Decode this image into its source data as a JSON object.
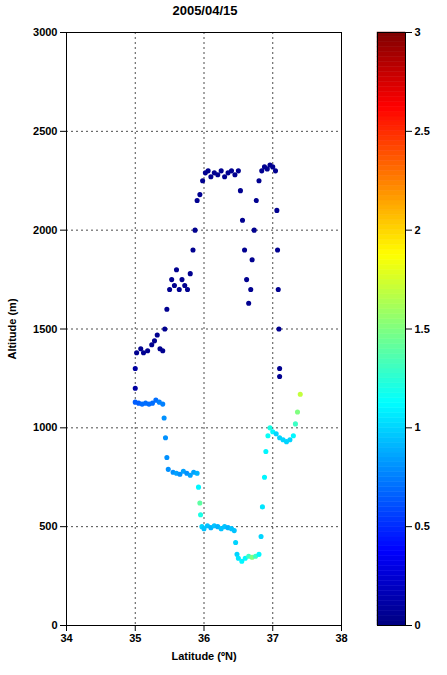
{
  "chart_data": {
    "type": "scatter",
    "title": "2005/04/15",
    "x_label": "Latitude (ºN)",
    "y_label": "Altitude (m)",
    "xlim": [
      34,
      38
    ],
    "xticks": [
      34,
      35,
      36,
      37,
      38
    ],
    "ylim": [
      0,
      3000
    ],
    "yticks": [
      0,
      500,
      1000,
      1500,
      2000,
      2500,
      3000
    ],
    "grid": true,
    "marker": "dot",
    "colorbar_range": [
      0,
      3
    ],
    "colorbar_ticks": [
      0,
      0.5,
      1,
      1.5,
      2,
      2.5,
      3
    ],
    "x": [
      35.0,
      35.05,
      35.1,
      35.15,
      35.2,
      35.25,
      35.3,
      35.35,
      35.4,
      35.42,
      35.44,
      35.46,
      35.48,
      35.55,
      35.6,
      35.65,
      35.7,
      35.75,
      35.8,
      35.85,
      35.9,
      35.92,
      35.94,
      35.95,
      35.97,
      36.0,
      36.05,
      36.1,
      36.15,
      36.2,
      36.25,
      36.3,
      36.35,
      36.4,
      36.44,
      36.46,
      36.48,
      36.5,
      36.55,
      36.6,
      36.65,
      36.7,
      36.75,
      36.8,
      36.83,
      36.85,
      36.88,
      36.9,
      36.93,
      36.96,
      37.0,
      37.05,
      37.1,
      37.15,
      37.2,
      37.25,
      37.3,
      37.33,
      37.36,
      37.4,
      35.0,
      35.0,
      35.02,
      35.08,
      35.12,
      35.18,
      35.24,
      35.28,
      35.32,
      35.36,
      35.4,
      35.43,
      35.46,
      35.5,
      35.53,
      35.57,
      35.6,
      35.64,
      35.68,
      35.72,
      35.76,
      35.8,
      35.84,
      35.87,
      35.9,
      35.94,
      35.98,
      36.02,
      36.06,
      36.1,
      36.15,
      36.2,
      36.25,
      36.3,
      36.35,
      36.4,
      36.45,
      36.5,
      36.53,
      36.56,
      36.59,
      36.62,
      36.65,
      36.68,
      36.7,
      36.73,
      36.76,
      36.8,
      36.84,
      36.88,
      36.92,
      36.96,
      37.0,
      37.04,
      37.06,
      37.07,
      37.08,
      37.09,
      37.1,
      37.1
    ],
    "y": [
      1130,
      1125,
      1120,
      1125,
      1120,
      1125,
      1140,
      1130,
      1120,
      1050,
      950,
      850,
      790,
      775,
      770,
      765,
      780,
      770,
      760,
      775,
      770,
      700,
      620,
      560,
      500,
      490,
      505,
      495,
      505,
      500,
      490,
      500,
      495,
      490,
      480,
      420,
      360,
      340,
      325,
      340,
      350,
      345,
      350,
      360,
      450,
      600,
      750,
      880,
      960,
      1000,
      980,
      970,
      950,
      940,
      930,
      940,
      960,
      1020,
      1080,
      1170,
      1200,
      1300,
      1380,
      1400,
      1380,
      1390,
      1420,
      1440,
      1470,
      1400,
      1390,
      1500,
      1600,
      1700,
      1750,
      1720,
      1800,
      1700,
      1750,
      1720,
      1700,
      1780,
      1900,
      2000,
      2150,
      2180,
      2250,
      2290,
      2300,
      2270,
      2290,
      2280,
      2300,
      2270,
      2290,
      2300,
      2280,
      2300,
      2200,
      2050,
      1900,
      1750,
      1630,
      1700,
      1850,
      2000,
      2150,
      2250,
      2300,
      2320,
      2310,
      2330,
      2320,
      2300,
      2100,
      1900,
      1700,
      1500,
      1300,
      1260
    ],
    "color_values": [
      0.65,
      0.65,
      0.7,
      0.7,
      0.7,
      0.7,
      0.7,
      0.75,
      0.75,
      0.8,
      0.8,
      0.8,
      0.8,
      0.8,
      0.85,
      0.8,
      0.85,
      0.8,
      0.85,
      0.85,
      0.9,
      1.1,
      1.4,
      1.2,
      1.0,
      0.95,
      0.95,
      0.9,
      0.95,
      0.9,
      0.95,
      0.95,
      0.9,
      0.95,
      0.95,
      1.0,
      1.0,
      1.05,
      1.1,
      1.1,
      1.3,
      1.5,
      1.3,
      1.1,
      1.0,
      1.05,
      1.1,
      1.1,
      1.15,
      1.2,
      1.1,
      1.0,
      1.0,
      1.0,
      1.0,
      1.0,
      1.1,
      1.3,
      1.5,
      1.7,
      0.1,
      0.1,
      0.05,
      0.05,
      0.05,
      0.05,
      0.05,
      0.05,
      0.05,
      0.05,
      0.05,
      0.05,
      0.05,
      0.05,
      0.05,
      0.05,
      0.05,
      0.05,
      0.05,
      0.05,
      0.05,
      0.05,
      0.05,
      0.05,
      0.05,
      0.05,
      0.05,
      0.05,
      0.05,
      0.05,
      0.05,
      0.05,
      0.05,
      0.05,
      0.05,
      0.05,
      0.05,
      0.05,
      0.05,
      0.05,
      0.05,
      0.05,
      0.05,
      0.05,
      0.05,
      0.05,
      0.05,
      0.05,
      0.05,
      0.05,
      0.05,
      0.05,
      0.05,
      0.05,
      0.05,
      0.05,
      0.05,
      0.05,
      0.05,
      0.05
    ]
  }
}
